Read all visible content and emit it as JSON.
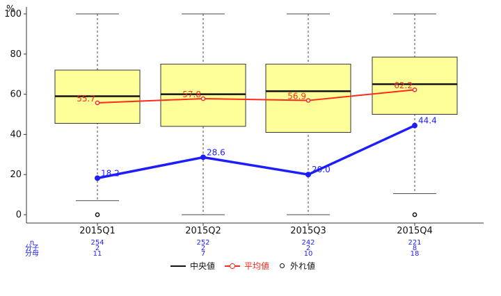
{
  "chart_data": {
    "type": "boxplot",
    "ylabel": "%",
    "ylim": [
      0,
      100
    ],
    "yticks": [
      0,
      20,
      40,
      60,
      80,
      100
    ],
    "categories": [
      "2015Q1",
      "2015Q2",
      "2015Q3",
      "2015Q4"
    ],
    "boxes": [
      {
        "category": "2015Q1",
        "whisker_low": 7,
        "q1": 45.5,
        "median": 59,
        "q3": 72,
        "whisker_high": 100,
        "outliers": [
          0
        ]
      },
      {
        "category": "2015Q2",
        "whisker_low": 0,
        "q1": 44,
        "median": 60,
        "q3": 75,
        "whisker_high": 100,
        "outliers": []
      },
      {
        "category": "2015Q3",
        "whisker_low": 0,
        "q1": 41,
        "median": 61.5,
        "q3": 75,
        "whisker_high": 100,
        "outliers": []
      },
      {
        "category": "2015Q4",
        "whisker_low": 10.5,
        "q1": 50,
        "median": 65,
        "q3": 78.5,
        "whisker_high": 100,
        "outliers": [
          0
        ]
      }
    ],
    "series": [
      {
        "name": "平均値",
        "color": "#ff2a1a",
        "values": [
          55.7,
          57.8,
          56.9,
          62.2
        ],
        "labels": [
          "55.7",
          "57.8",
          "56.9",
          "62.2"
        ]
      },
      {
        "name": "",
        "color": "#1d1dff",
        "values": [
          18.2,
          28.6,
          20.0,
          44.4
        ],
        "labels": [
          "18.2",
          "28.6",
          "20.0",
          "44.4"
        ]
      }
    ],
    "counts": {
      "row_labels": [
        "n",
        "分子",
        "分母"
      ],
      "n": [
        "254",
        "252",
        "242",
        "221"
      ],
      "numerator": [
        "2",
        "2",
        "2",
        "8"
      ],
      "denominator": [
        "11",
        "7",
        "10",
        "18"
      ]
    },
    "colors": {
      "box_fill": "#ffff99",
      "median": "#111111",
      "mean": "#ff2a1a",
      "rate": "#1d1dff"
    }
  },
  "legend": {
    "median_label": "中央値",
    "mean_label": "平均値",
    "outlier_label": "外れ値"
  }
}
